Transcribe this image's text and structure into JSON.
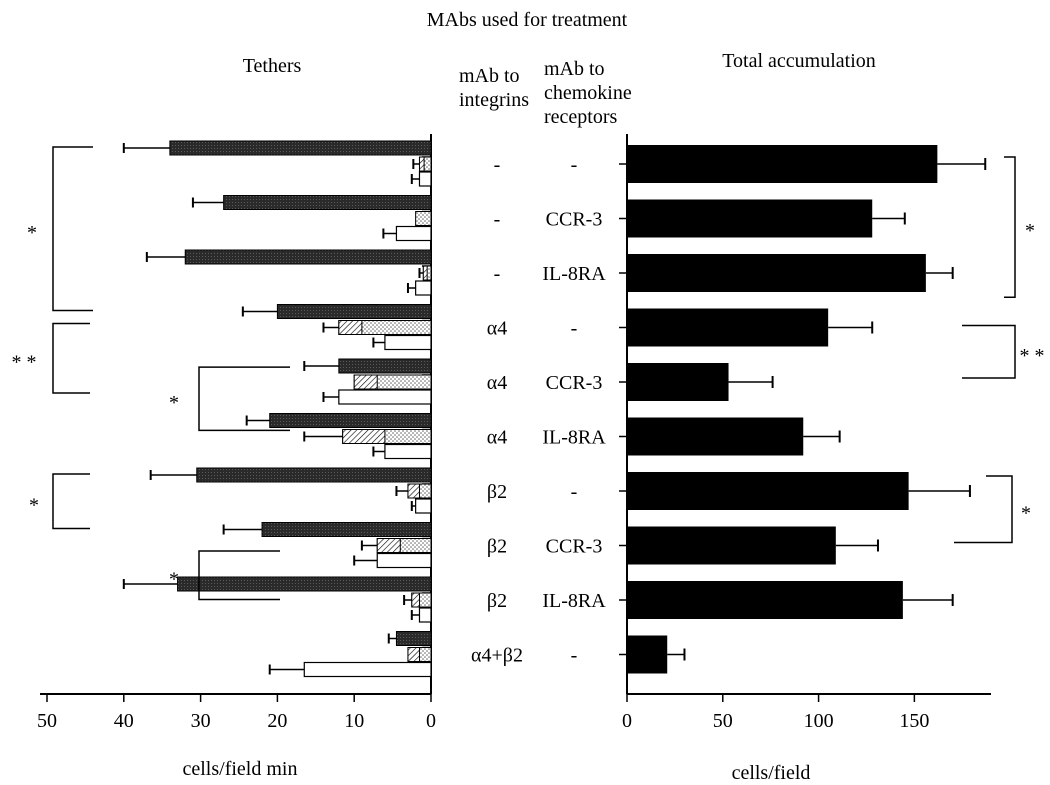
{
  "figure": {
    "title": "MAbs used for treatment"
  },
  "columns": {
    "integrin_header": [
      "mAb to",
      "integrins"
    ],
    "chemokine_header": [
      "mAb to",
      "chemokine",
      "receptors"
    ]
  },
  "chart_data": [
    {
      "type": "bar",
      "orientation": "horizontal",
      "title": "Tethers",
      "xlabel": "cells/field min",
      "xlim": [
        50,
        0
      ],
      "x_direction": "reversed",
      "x_ticks": [
        "50",
        "40",
        "30",
        "20",
        "10",
        "0"
      ],
      "colors": {
        "dark": "#2a2a2a",
        "dotted": "#d9d9d9",
        "open": "#ffffff"
      },
      "rows": [
        {
          "integrin": "-",
          "chemokine": "-",
          "dark": {
            "value": 34,
            "error": 6
          },
          "dotted": {
            "value": 1.5,
            "error": 0.8,
            "hatched": 0.6
          },
          "open": {
            "value": 1.5,
            "error": 1
          }
        },
        {
          "integrin": "-",
          "chemokine": "CCR-3",
          "dark": {
            "value": 27,
            "error": 4
          },
          "dotted": {
            "value": 2,
            "error": 0
          },
          "open": {
            "value": 4.5,
            "error": 1.7
          }
        },
        {
          "integrin": "-",
          "chemokine": "IL-8RA",
          "dark": {
            "value": 32,
            "error": 5
          },
          "dotted": {
            "value": 1,
            "error": 0.5,
            "hatched": 0.5
          },
          "open": {
            "value": 2,
            "error": 1
          }
        },
        {
          "integrin": "α4",
          "chemokine": "-",
          "dark": {
            "value": 20,
            "error": 4.5
          },
          "dotted": {
            "value": 12,
            "error": 2,
            "hatched": 3
          },
          "open": {
            "value": 6,
            "error": 1.5
          }
        },
        {
          "integrin": "α4",
          "chemokine": "CCR-3",
          "dark": {
            "value": 12,
            "error": 4.5
          },
          "dotted": {
            "value": 10,
            "error": 0,
            "hatched": 3
          },
          "open": {
            "value": 12,
            "error": 2
          }
        },
        {
          "integrin": "α4",
          "chemokine": "IL-8RA",
          "dark": {
            "value": 21,
            "error": 3
          },
          "dotted": {
            "value": 11.5,
            "error": 5,
            "hatched": 5.5
          },
          "open": {
            "value": 6,
            "error": 1.5
          }
        },
        {
          "integrin": "β2",
          "chemokine": "-",
          "dark": {
            "value": 30.5,
            "error": 6
          },
          "dotted": {
            "value": 3,
            "error": 1.5,
            "hatched": 1.5
          },
          "open": {
            "value": 2,
            "error": 0.5
          }
        },
        {
          "integrin": "β2",
          "chemokine": "CCR-3",
          "dark": {
            "value": 22,
            "error": 5
          },
          "dotted": {
            "value": 7,
            "error": 2,
            "hatched": 3
          },
          "open": {
            "value": 7,
            "error": 3
          }
        },
        {
          "integrin": "β2",
          "chemokine": "IL-8RA",
          "dark": {
            "value": 33,
            "error": 7
          },
          "dotted": {
            "value": 2.5,
            "error": 1,
            "hatched": 1
          },
          "open": {
            "value": 1.5,
            "error": 1
          }
        },
        {
          "integrin": "α4+β2",
          "chemokine": "-",
          "dark": {
            "value": 4.5,
            "error": 1
          },
          "dotted": {
            "value": 3,
            "error": 0,
            "hatched": 1.5
          },
          "open": {
            "value": 16.5,
            "error": 4.5
          }
        }
      ],
      "annotations": [
        {
          "text": "*",
          "from_row": 0,
          "to_row": 3
        },
        {
          "text": "* *",
          "from_row": 3,
          "to_row": 4
        },
        {
          "text": "*",
          "from_row": 3.8,
          "to_row": 5.2
        },
        {
          "text": "*",
          "from_row": 6,
          "to_row": 7
        },
        {
          "text": "*",
          "from_row": 6.9,
          "to_row": 8.1
        }
      ]
    },
    {
      "type": "bar",
      "orientation": "horizontal",
      "title": "Total accumulation",
      "xlabel": "cells/field",
      "xlim": [
        0,
        190
      ],
      "x_ticks": [
        "0",
        "50",
        "100",
        "150"
      ],
      "colors": {
        "bar": "#000000"
      },
      "rows": [
        {
          "integrin": "-",
          "chemokine": "-",
          "value": 162,
          "error": 25
        },
        {
          "integrin": "-",
          "chemokine": "CCR-3",
          "value": 128,
          "error": 17
        },
        {
          "integrin": "-",
          "chemokine": "IL-8RA",
          "value": 156,
          "error": 14
        },
        {
          "integrin": "α4",
          "chemokine": "-",
          "value": 105,
          "error": 23
        },
        {
          "integrin": "α4",
          "chemokine": "CCR-3",
          "value": 53,
          "error": 23
        },
        {
          "integrin": "α4",
          "chemokine": "IL-8RA",
          "value": 92,
          "error": 19
        },
        {
          "integrin": "β2",
          "chemokine": "-",
          "value": 147,
          "error": 32
        },
        {
          "integrin": "β2",
          "chemokine": "CCR-3",
          "value": 109,
          "error": 22
        },
        {
          "integrin": "β2",
          "chemokine": "IL-8RA",
          "value": 144,
          "error": 26
        },
        {
          "integrin": "α4+β2",
          "chemokine": "-",
          "value": 21,
          "error": 9
        }
      ],
      "annotations": [
        {
          "text": "*",
          "from_row": 0,
          "to_row": 2.5
        },
        {
          "text": "* *",
          "from_row": 3,
          "to_row": 4
        },
        {
          "text": "*",
          "from_row": 6,
          "to_row": 7
        }
      ]
    }
  ]
}
